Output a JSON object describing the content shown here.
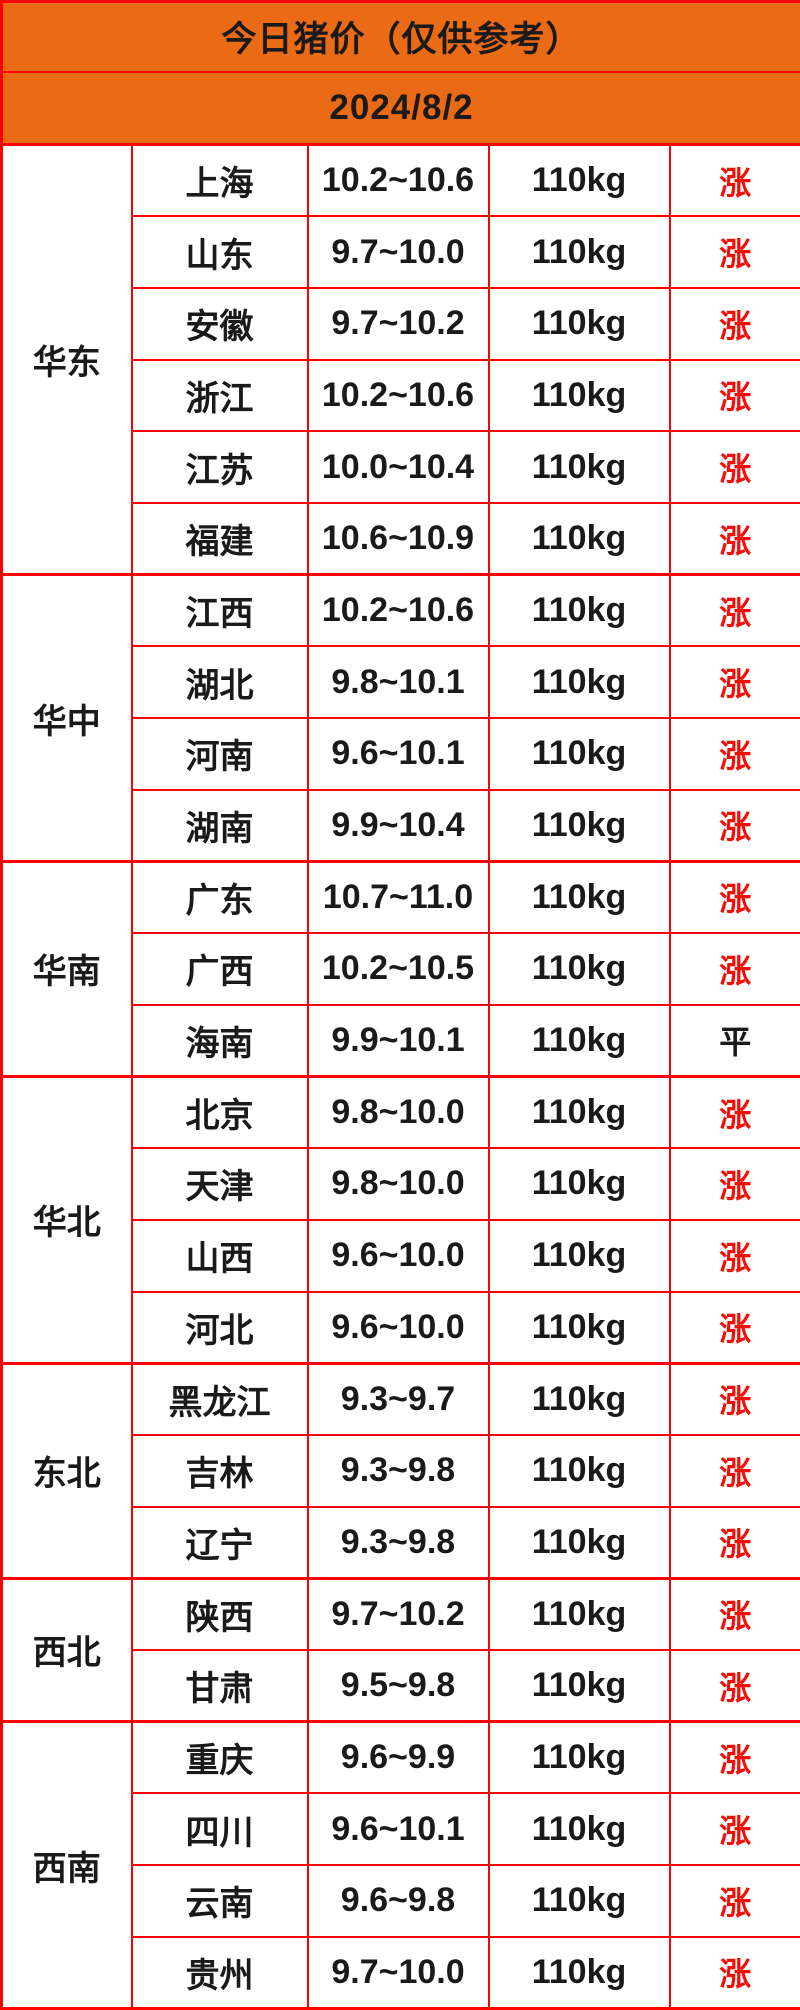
{
  "title": "今日猪价（仅供参考）",
  "date": "2024/8/2",
  "legend": {
    "up": "涨",
    "flat": "平"
  },
  "colors": {
    "header_bg": "#EB6A16",
    "border_red": "#FB0300",
    "up_red": "#F50D07",
    "text_black": "#1a1a1a"
  },
  "regions": [
    {
      "name": "华东",
      "rows": [
        {
          "province": "上海",
          "price": "10.2~10.6",
          "weight": "110kg",
          "status": "涨",
          "trend": "up"
        },
        {
          "province": "山东",
          "price": "9.7~10.0",
          "weight": "110kg",
          "status": "涨",
          "trend": "up"
        },
        {
          "province": "安徽",
          "price": "9.7~10.2",
          "weight": "110kg",
          "status": "涨",
          "trend": "up"
        },
        {
          "province": "浙江",
          "price": "10.2~10.6",
          "weight": "110kg",
          "status": "涨",
          "trend": "up"
        },
        {
          "province": "江苏",
          "price": "10.0~10.4",
          "weight": "110kg",
          "status": "涨",
          "trend": "up"
        },
        {
          "province": "福建",
          "price": "10.6~10.9",
          "weight": "110kg",
          "status": "涨",
          "trend": "up"
        }
      ]
    },
    {
      "name": "华中",
      "rows": [
        {
          "province": "江西",
          "price": "10.2~10.6",
          "weight": "110kg",
          "status": "涨",
          "trend": "up"
        },
        {
          "province": "湖北",
          "price": "9.8~10.1",
          "weight": "110kg",
          "status": "涨",
          "trend": "up"
        },
        {
          "province": "河南",
          "price": "9.6~10.1",
          "weight": "110kg",
          "status": "涨",
          "trend": "up"
        },
        {
          "province": "湖南",
          "price": "9.9~10.4",
          "weight": "110kg",
          "status": "涨",
          "trend": "up"
        }
      ]
    },
    {
      "name": "华南",
      "rows": [
        {
          "province": "广东",
          "price": "10.7~11.0",
          "weight": "110kg",
          "status": "涨",
          "trend": "up"
        },
        {
          "province": "广西",
          "price": "10.2~10.5",
          "weight": "110kg",
          "status": "涨",
          "trend": "up"
        },
        {
          "province": "海南",
          "price": "9.9~10.1",
          "weight": "110kg",
          "status": "平",
          "trend": "flat"
        }
      ]
    },
    {
      "name": "华北",
      "rows": [
        {
          "province": "北京",
          "price": "9.8~10.0",
          "weight": "110kg",
          "status": "涨",
          "trend": "up"
        },
        {
          "province": "天津",
          "price": "9.8~10.0",
          "weight": "110kg",
          "status": "涨",
          "trend": "up"
        },
        {
          "province": "山西",
          "price": "9.6~10.0",
          "weight": "110kg",
          "status": "涨",
          "trend": "up"
        },
        {
          "province": "河北",
          "price": "9.6~10.0",
          "weight": "110kg",
          "status": "涨",
          "trend": "up"
        }
      ]
    },
    {
      "name": "东北",
      "rows": [
        {
          "province": "黑龙江",
          "price": "9.3~9.7",
          "weight": "110kg",
          "status": "涨",
          "trend": "up"
        },
        {
          "province": "吉林",
          "price": "9.3~9.8",
          "weight": "110kg",
          "status": "涨",
          "trend": "up"
        },
        {
          "province": "辽宁",
          "price": "9.3~9.8",
          "weight": "110kg",
          "status": "涨",
          "trend": "up"
        }
      ]
    },
    {
      "name": "西北",
      "rows": [
        {
          "province": "陕西",
          "price": "9.7~10.2",
          "weight": "110kg",
          "status": "涨",
          "trend": "up"
        },
        {
          "province": "甘肃",
          "price": "9.5~9.8",
          "weight": "110kg",
          "status": "涨",
          "trend": "up"
        }
      ]
    },
    {
      "name": "西南",
      "rows": [
        {
          "province": "重庆",
          "price": "9.6~9.9",
          "weight": "110kg",
          "status": "涨",
          "trend": "up"
        },
        {
          "province": "四川",
          "price": "9.6~10.1",
          "weight": "110kg",
          "status": "涨",
          "trend": "up"
        },
        {
          "province": "云南",
          "price": "9.6~9.8",
          "weight": "110kg",
          "status": "涨",
          "trend": "up"
        },
        {
          "province": "贵州",
          "price": "9.7~10.0",
          "weight": "110kg",
          "status": "涨",
          "trend": "up"
        }
      ]
    }
  ]
}
